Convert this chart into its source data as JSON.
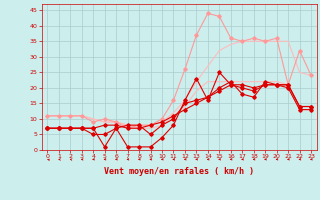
{
  "bg_color": "#cceeed",
  "grid_color": "#aacccc",
  "xlabel": "Vent moyen/en rafales ( km/h )",
  "xlabel_color": "#cc0000",
  "ylabel_values": [
    0,
    5,
    10,
    15,
    20,
    25,
    30,
    35,
    40,
    45
  ],
  "xlim": [
    -0.5,
    23.5
  ],
  "ylim": [
    0,
    47
  ],
  "x": [
    0,
    1,
    2,
    3,
    4,
    5,
    6,
    7,
    8,
    9,
    10,
    11,
    12,
    13,
    14,
    15,
    16,
    17,
    18,
    19,
    20,
    21,
    22,
    23
  ],
  "series": [
    {
      "y": [
        7,
        7,
        7,
        7,
        7,
        1,
        7,
        1,
        1,
        1,
        4,
        8,
        16,
        23,
        16,
        25,
        21,
        21,
        20,
        21,
        21,
        21,
        14,
        14
      ],
      "color": "#dd0000",
      "lw": 0.8,
      "marker": "D",
      "ms": 1.8,
      "zorder": 5
    },
    {
      "y": [
        7,
        7,
        7,
        7,
        5,
        5,
        7,
        8,
        8,
        5,
        8,
        10,
        15,
        16,
        17,
        20,
        22,
        18,
        17,
        22,
        21,
        20,
        13,
        13
      ],
      "color": "#dd0000",
      "lw": 0.8,
      "marker": "D",
      "ms": 1.8,
      "zorder": 5
    },
    {
      "y": [
        7,
        7,
        7,
        7,
        7,
        8,
        8,
        7,
        7,
        8,
        9,
        11,
        13,
        15,
        17,
        19,
        21,
        20,
        19,
        21,
        21,
        21,
        14,
        14
      ],
      "color": "#dd0000",
      "lw": 0.8,
      "marker": "D",
      "ms": 1.8,
      "zorder": 5
    },
    {
      "y": [
        11,
        11,
        11,
        11,
        9,
        10,
        9,
        7,
        8,
        8,
        10,
        16,
        26,
        37,
        44,
        43,
        36,
        35,
        36,
        35,
        36,
        21,
        32,
        24
      ],
      "color": "#ff9999",
      "lw": 0.8,
      "marker": "D",
      "ms": 1.8,
      "zorder": 4
    },
    {
      "y": [
        11,
        11,
        11,
        11,
        10,
        9,
        9,
        8,
        7,
        7,
        8,
        11,
        14,
        19,
        22,
        22,
        22,
        22,
        22,
        22,
        22,
        21,
        13,
        13
      ],
      "color": "#ffbbbb",
      "lw": 0.8,
      "marker": null,
      "ms": 0,
      "zorder": 3
    },
    {
      "y": [
        11,
        11,
        11,
        11,
        10,
        9,
        9,
        8,
        8,
        8,
        9,
        12,
        16,
        22,
        27,
        32,
        34,
        35,
        35,
        35,
        35,
        35,
        25,
        24
      ],
      "color": "#ffbbbb",
      "lw": 0.8,
      "marker": null,
      "ms": 0,
      "zorder": 3
    }
  ],
  "tick_color": "#cc0000",
  "tick_fontsize": 4.5,
  "label_fontsize": 6.0
}
